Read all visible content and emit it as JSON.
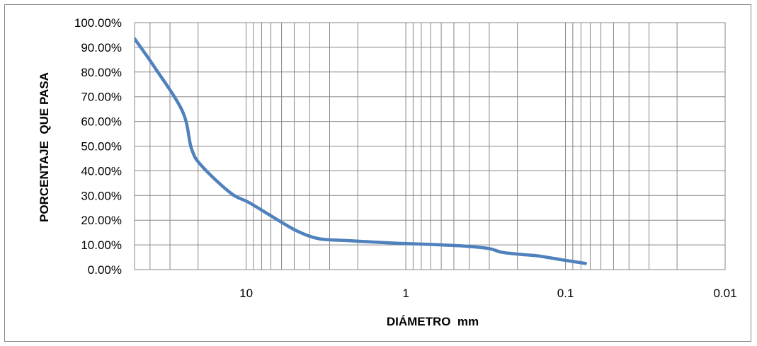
{
  "chart_data": {
    "type": "line",
    "xlabel": "DIÁMETRO  mm",
    "ylabel": "PORCENTAJE  QUE PASA",
    "x_scale": "log",
    "x_reversed": true,
    "xlim": [
      50,
      0.01
    ],
    "ylim": [
      0,
      1
    ],
    "x_ticks": [
      {
        "value": 10,
        "label": "10"
      },
      {
        "value": 1,
        "label": "1"
      },
      {
        "value": 0.1,
        "label": "0.1"
      },
      {
        "value": 0.01,
        "label": "0.01"
      }
    ],
    "y_ticks": [
      {
        "value": 1.0,
        "label": "100.00%"
      },
      {
        "value": 0.9,
        "label": "90.00%"
      },
      {
        "value": 0.8,
        "label": "80.00%"
      },
      {
        "value": 0.7,
        "label": "70.00%"
      },
      {
        "value": 0.6,
        "label": "60.00%"
      },
      {
        "value": 0.5,
        "label": "50.00%"
      },
      {
        "value": 0.4,
        "label": "40.00%"
      },
      {
        "value": 0.3,
        "label": "30.00%"
      },
      {
        "value": 0.2,
        "label": "20.00%"
      },
      {
        "value": 0.1,
        "label": "10.00%"
      },
      {
        "value": 0.0,
        "label": "0.00%"
      }
    ],
    "grid": true,
    "legend": "none",
    "series": [
      {
        "color": "#4f81bd",
        "points": [
          {
            "x": 50,
            "y": 0.935
          },
          {
            "x": 37.5,
            "y": 0.82
          },
          {
            "x": 25,
            "y": 0.64
          },
          {
            "x": 22,
            "y": 0.49
          },
          {
            "x": 19,
            "y": 0.42
          },
          {
            "x": 12.5,
            "y": 0.31
          },
          {
            "x": 9.5,
            "y": 0.27
          },
          {
            "x": 6.3,
            "y": 0.2
          },
          {
            "x": 4.75,
            "y": 0.155
          },
          {
            "x": 3.5,
            "y": 0.125
          },
          {
            "x": 2.36,
            "y": 0.118
          },
          {
            "x": 2,
            "y": 0.115
          },
          {
            "x": 1.18,
            "y": 0.107
          },
          {
            "x": 0.85,
            "y": 0.104
          },
          {
            "x": 0.6,
            "y": 0.1
          },
          {
            "x": 0.425,
            "y": 0.095
          },
          {
            "x": 0.3,
            "y": 0.085
          },
          {
            "x": 0.25,
            "y": 0.07
          },
          {
            "x": 0.18,
            "y": 0.06
          },
          {
            "x": 0.15,
            "y": 0.056
          },
          {
            "x": 0.106,
            "y": 0.04
          },
          {
            "x": 0.075,
            "y": 0.025
          }
        ]
      }
    ]
  }
}
